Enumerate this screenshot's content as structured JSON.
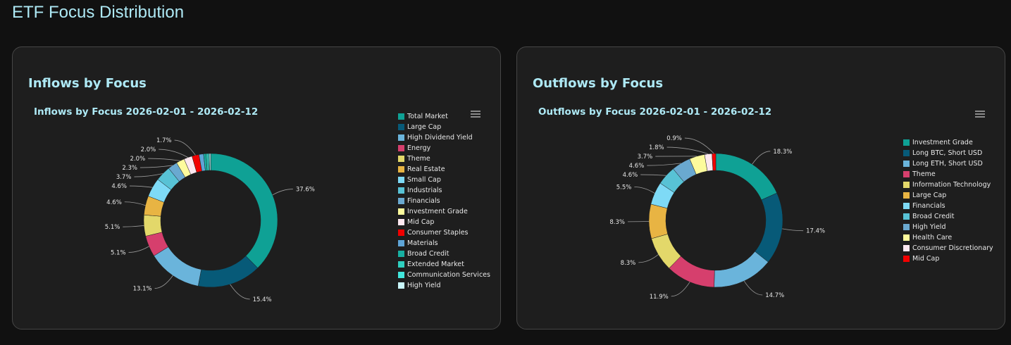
{
  "page": {
    "title": "ETF Focus Distribution"
  },
  "chart_data": [
    {
      "type": "pie",
      "card_title": "Inflows by Focus",
      "title": "Inflows by Focus 2026-02-01 - 2026-02-12",
      "donut": true,
      "legend_placement": "right",
      "categories": [
        "Total Market",
        "Large Cap",
        "High Dividend Yield",
        "Energy",
        "Theme",
        "Real Estate",
        "Small Cap",
        "Industrials",
        "Financials",
        "Investment Grade",
        "Mid Cap",
        "Consumer Staples",
        "Materials",
        "Broad Credit",
        "Extended Market",
        "Communication Services",
        "High Yield"
      ],
      "values": [
        37.6,
        15.4,
        13.1,
        5.1,
        5.1,
        4.6,
        4.6,
        3.7,
        2.3,
        2.0,
        2.0,
        1.7,
        1.1,
        0.6,
        0.5,
        0.3,
        0.3
      ],
      "data_labels": [
        "37.6%",
        "15.4%",
        "13.1%",
        "5.1%",
        "5.1%",
        "4.6%",
        "4.6%",
        "3.7%",
        "2.3%",
        "2.0%",
        "2.0%",
        "1.7%",
        "",
        "",
        "",
        "",
        ""
      ],
      "colors": [
        "#0fa195",
        "#075a78",
        "#6ab4db",
        "#d63f6d",
        "#e3d86a",
        "#e8b443",
        "#7edaf6",
        "#58c2d5",
        "#6aa9d0",
        "#fdfb9c",
        "#fde8f0",
        "#f20000",
        "#5fa5d7",
        "#17b0a2",
        "#2fd0c0",
        "#42e6dc",
        "#c9f6fb"
      ]
    },
    {
      "type": "pie",
      "card_title": "Outflows by Focus",
      "title": "Outflows by Focus 2026-02-01 - 2026-02-12",
      "donut": true,
      "legend_placement": "right",
      "categories": [
        "Investment Grade",
        "Long BTC, Short USD",
        "Long ETH, Short USD",
        "Theme",
        "Information Technology",
        "Large Cap",
        "Financials",
        "Broad Credit",
        "High Yield",
        "Health Care",
        "Consumer Discretionary",
        "Mid Cap"
      ],
      "values": [
        18.3,
        17.4,
        14.7,
        11.9,
        8.3,
        8.3,
        5.5,
        4.6,
        4.6,
        3.7,
        1.8,
        0.9
      ],
      "data_labels": [
        "18.3%",
        "17.4%",
        "14.7%",
        "11.9%",
        "8.3%",
        "8.3%",
        "5.5%",
        "4.6%",
        "4.6%",
        "3.7%",
        "1.8%",
        "0.9%"
      ],
      "colors": [
        "#0fa195",
        "#075a78",
        "#6ab4db",
        "#d63f6d",
        "#e3d86a",
        "#e8b443",
        "#7edaf6",
        "#58c2d5",
        "#6aa9d0",
        "#fdfb9c",
        "#fde8f0",
        "#f20000"
      ]
    }
  ],
  "icons": {
    "menu": "hamburger-menu-icon"
  }
}
